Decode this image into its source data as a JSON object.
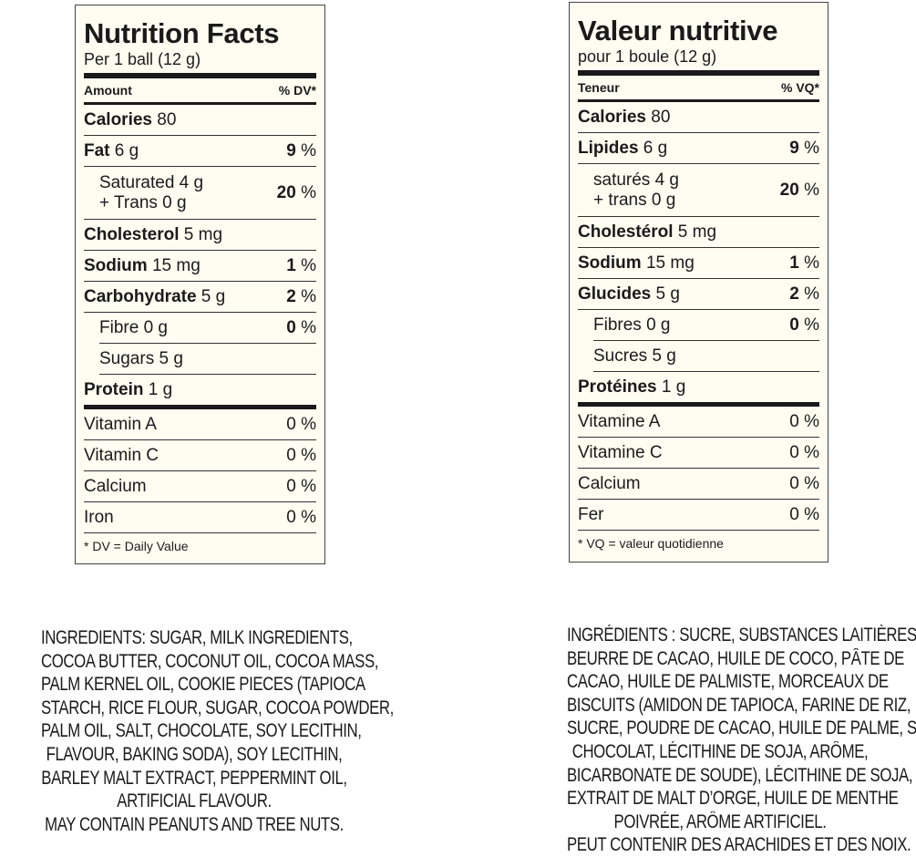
{
  "left": {
    "title": "Nutrition Facts",
    "serving": "Per 1 ball (12 g)",
    "amount": "Amount",
    "dv": "% DV*",
    "rows": [
      {
        "type": "main",
        "name": "Calories",
        "value": " 80",
        "dv": "",
        "unit": ""
      },
      {
        "type": "main",
        "name": "Fat",
        "value": " 6 g",
        "dv": "9",
        "unit": " %"
      },
      {
        "type": "double",
        "name": "",
        "value": "Saturated 4 g",
        "value2": "+ Trans 0 g",
        "dv": "20",
        "unit": " %"
      },
      {
        "type": "main",
        "name": "Cholesterol",
        "value": " 5 mg",
        "dv": "",
        "unit": ""
      },
      {
        "type": "main",
        "name": "Sodium",
        "value": " 15 mg",
        "dv": "1",
        "unit": " %"
      },
      {
        "type": "main",
        "name": "Carbohydrate",
        "value": " 5 g",
        "dv": "2",
        "unit": " %"
      },
      {
        "type": "subline",
        "name": "",
        "value": "Fibre 0 g",
        "dv": "0",
        "unit": " %"
      },
      {
        "type": "subline",
        "name": "",
        "value": "Sugars 5 g",
        "dv": "",
        "unit": ""
      },
      {
        "type": "thick",
        "name": "Protein",
        "value": " 1 g",
        "dv": "",
        "unit": ""
      },
      {
        "type": "vit",
        "name": "",
        "value": "Vitamin A",
        "dv": "",
        "unit": "0 %"
      },
      {
        "type": "vit",
        "name": "",
        "value": "Vitamin C",
        "dv": "",
        "unit": "0 %"
      },
      {
        "type": "vit",
        "name": "",
        "value": "Calcium",
        "dv": "",
        "unit": "0 %"
      },
      {
        "type": "vit",
        "name": "",
        "value": "Iron",
        "dv": "",
        "unit": "0 %"
      }
    ],
    "footnote": "* DV = Daily Value"
  },
  "right": {
    "title": "Valeur nutritive",
    "serving": "pour 1 boule (12 g)",
    "amount": "Teneur",
    "dv": "% VQ*",
    "rows": [
      {
        "type": "main",
        "name": "Calories",
        "value": " 80",
        "dv": "",
        "unit": ""
      },
      {
        "type": "main",
        "name": "Lipides",
        "value": " 6 g",
        "dv": "9",
        "unit": " %"
      },
      {
        "type": "double",
        "name": "",
        "value": "saturés 4 g",
        "value2": "+ trans 0 g",
        "dv": "20",
        "unit": " %"
      },
      {
        "type": "main",
        "name": "Cholestérol",
        "value": " 5 mg",
        "dv": "",
        "unit": ""
      },
      {
        "type": "main",
        "name": "Sodium",
        "value": " 15 mg",
        "dv": "1",
        "unit": " %"
      },
      {
        "type": "main",
        "name": "Glucides",
        "value": " 5 g",
        "dv": "2",
        "unit": " %"
      },
      {
        "type": "subline",
        "name": "",
        "value": "Fibres 0 g",
        "dv": "0",
        "unit": " %"
      },
      {
        "type": "subline",
        "name": "",
        "value": "Sucres 5 g",
        "dv": "",
        "unit": ""
      },
      {
        "type": "thick",
        "name": "Protéines",
        "value": " 1 g",
        "dv": "",
        "unit": ""
      },
      {
        "type": "vit",
        "name": "",
        "value": "Vitamine A",
        "dv": "",
        "unit": "0 %"
      },
      {
        "type": "vit",
        "name": "",
        "value": "Vitamine C",
        "dv": "",
        "unit": "0 %"
      },
      {
        "type": "vit",
        "name": "",
        "value": "Calcium",
        "dv": "",
        "unit": "0 %"
      },
      {
        "type": "vit",
        "name": "",
        "value": "Fer",
        "dv": "",
        "unit": "0 %"
      }
    ],
    "footnote": "* VQ = valeur quotidienne"
  },
  "ingredients_en": [
    "INGREDIENTS: SUGAR, MILK INGREDIENTS,",
    "COCOA BUTTER, COCONUT OIL, COCOA MASS,",
    "PALM KERNEL OIL, COOKIE PIECES (TAPIOCA",
    "STARCH, RICE FLOUR, SUGAR, COCOA POWDER,",
    "PALM OIL, SALT, CHOCOLATE, SOY LECITHIN,",
    "FLAVOUR, BAKING SODA), SOY LECITHIN,",
    "BARLEY MALT EXTRACT, PEPPERMINT OIL,",
    "ARTIFICIAL FLAVOUR.",
    "MAY CONTAIN PEANUTS AND TREE NUTS."
  ],
  "ingredients_fr": [
    "INGRÉDIENTS : SUCRE, SUBSTANCES LAITIÈRES,",
    "BEURRE DE CACAO, HUILE DE COCO, PÂTE DE",
    "CACAO, HUILE DE PALMISTE, MORCEAUX DE",
    "BISCUITS (AMIDON DE TAPIOCA, FARINE DE RIZ,",
    "SUCRE, POUDRE DE CACAO, HUILE DE PALME, SEL,",
    "CHOCOLAT, LÉCITHINE DE SOJA, ARÔME,",
    "BICARBONATE DE SOUDE), LÉCITHINE DE SOJA,",
    "EXTRAIT DE MALT D’ORGE, HUILE DE MENTHE",
    "POIVRÉE, ARÔME ARTIFICIEL.",
    "PEUT CONTENIR DES ARACHIDES ET DES NOIX."
  ]
}
